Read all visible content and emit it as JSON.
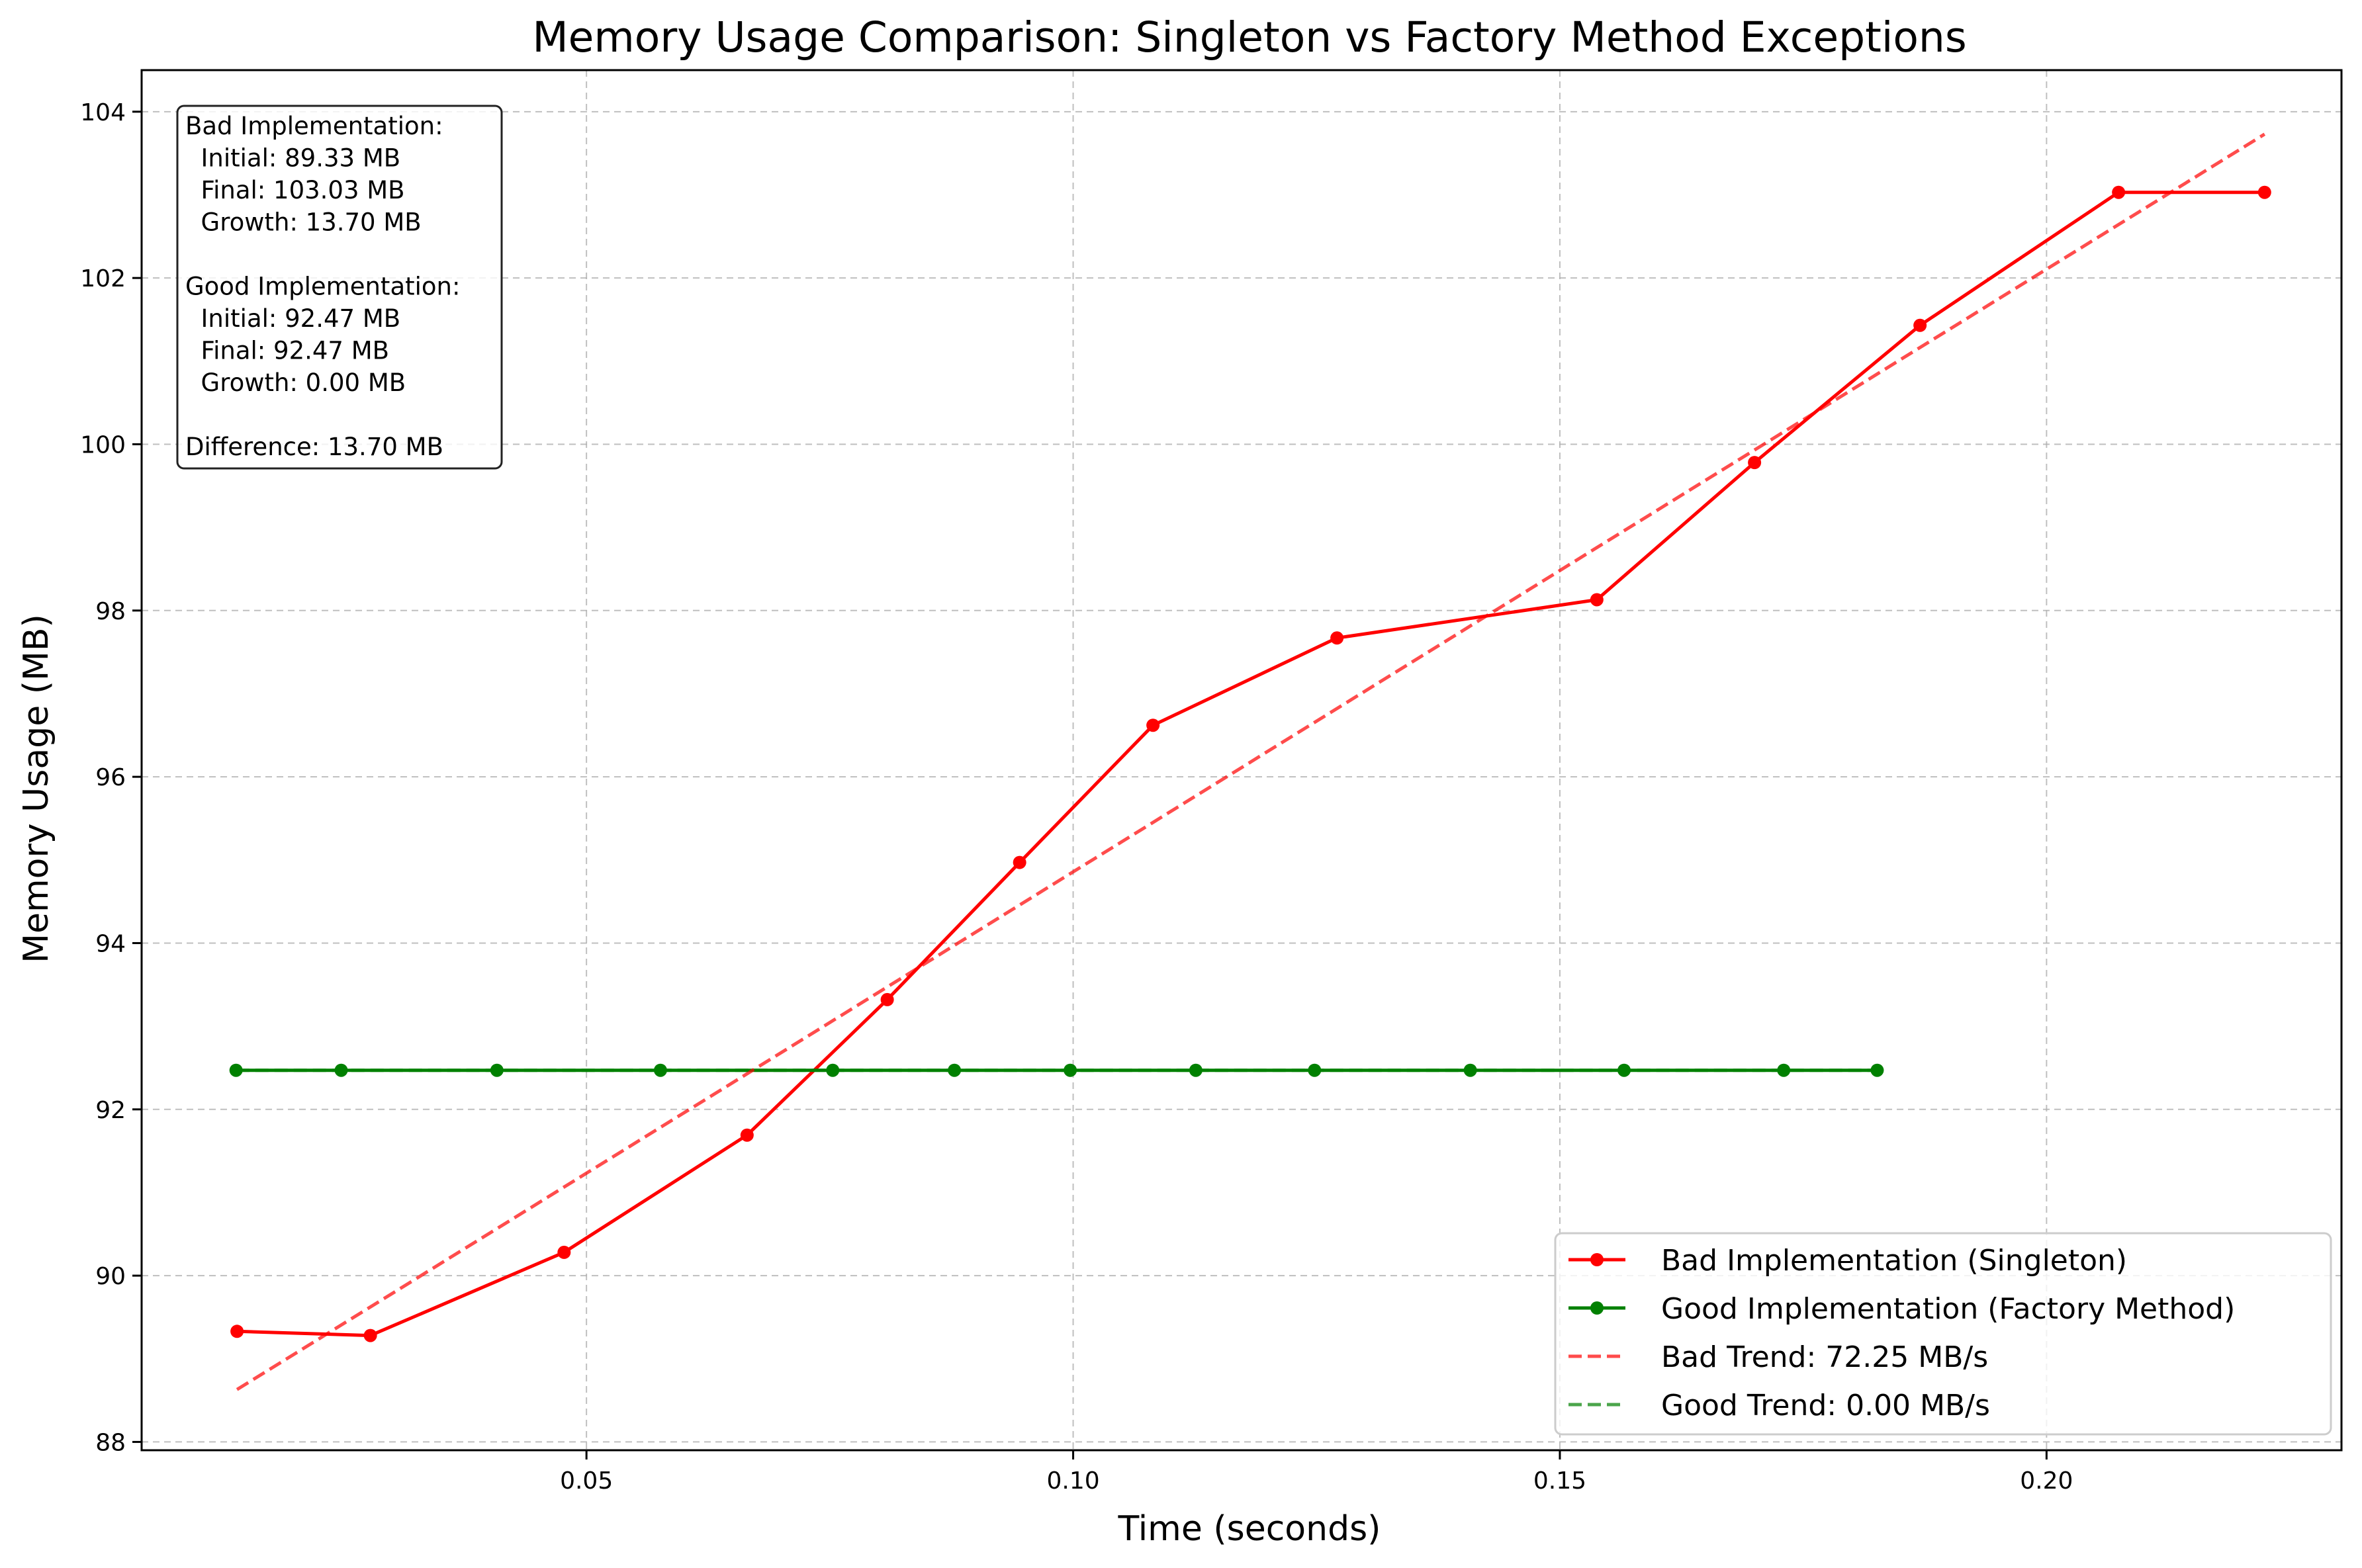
{
  "chart_data": {
    "type": "line",
    "title": "Memory Usage Comparison: Singleton vs Factory Method Exceptions",
    "xlabel": "Time (seconds)",
    "ylabel": "Memory Usage (MB)",
    "xlim": [
      0.0043,
      0.2303
    ],
    "ylim": [
      87.9,
      104.5
    ],
    "x_ticks": [
      0.05,
      0.1,
      0.15,
      0.2
    ],
    "x_tick_labels": [
      "0.05",
      "0.10",
      "0.15",
      "0.20"
    ],
    "y_ticks": [
      88,
      90,
      92,
      94,
      96,
      98,
      100,
      102,
      104
    ],
    "y_tick_labels": [
      "88",
      "90",
      "92",
      "94",
      "96",
      "98",
      "100",
      "102",
      "104"
    ],
    "grid": true,
    "legend_position": "bottom-right",
    "series": [
      {
        "name": "Bad Implementation (Singleton)",
        "color": "#ff0000",
        "style": "solid",
        "marker": "circle",
        "x": [
          0.0141,
          0.0278,
          0.0477,
          0.0665,
          0.0809,
          0.0945,
          0.1082,
          0.1271,
          0.1538,
          0.17,
          0.187,
          0.2074,
          0.2224
        ],
        "y": [
          89.33,
          89.28,
          90.28,
          91.69,
          93.32,
          94.97,
          96.62,
          97.67,
          98.13,
          99.78,
          101.43,
          103.03,
          103.03
        ]
      },
      {
        "name": "Good Implementation (Factory Method)",
        "color": "#008000",
        "style": "solid",
        "marker": "circle",
        "x": [
          0.014,
          0.0248,
          0.0408,
          0.0576,
          0.0753,
          0.0878,
          0.0997,
          0.1126,
          0.1248,
          0.1408,
          0.1566,
          0.173,
          0.1826
        ],
        "y": [
          92.47,
          92.47,
          92.47,
          92.47,
          92.47,
          92.47,
          92.47,
          92.47,
          92.47,
          92.47,
          92.47,
          92.47,
          92.47
        ]
      },
      {
        "name": "Bad Trend: 72.25 MB/s",
        "color": "#ff0000",
        "opacity": 0.7,
        "style": "dashed",
        "x": [
          0.0141,
          0.2224
        ],
        "y": [
          88.63,
          103.73
        ]
      },
      {
        "name": "Good Trend: 0.00 MB/s",
        "color": "#008000",
        "opacity": 0.7,
        "style": "dashed",
        "x": [
          0.014,
          0.1826
        ],
        "y": [
          92.47,
          92.47
        ]
      }
    ],
    "annotation_lines": [
      "Bad Implementation:",
      "  Initial: 89.33 MB",
      "  Final: 103.03 MB",
      "  Growth: 13.70 MB",
      "",
      "Good Implementation:",
      "  Initial: 92.47 MB",
      "  Final: 92.47 MB",
      "  Growth: 0.00 MB",
      "",
      "Difference: 13.70 MB"
    ]
  }
}
